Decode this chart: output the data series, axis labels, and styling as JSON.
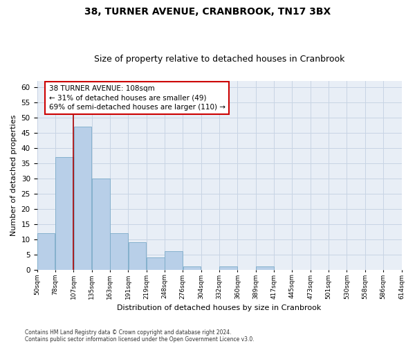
{
  "title": "38, TURNER AVENUE, CRANBROOK, TN17 3BX",
  "subtitle": "Size of property relative to detached houses in Cranbrook",
  "xlabel": "Distribution of detached houses by size in Cranbrook",
  "ylabel": "Number of detached properties",
  "bar_values": [
    12,
    37,
    47,
    30,
    12,
    9,
    4,
    6,
    1,
    0,
    1,
    0,
    1,
    0,
    0,
    0,
    0,
    0,
    0,
    0
  ],
  "x_labels": [
    "50sqm",
    "78sqm",
    "107sqm",
    "135sqm",
    "163sqm",
    "191sqm",
    "219sqm",
    "248sqm",
    "276sqm",
    "304sqm",
    "332sqm",
    "360sqm",
    "389sqm",
    "417sqm",
    "445sqm",
    "473sqm",
    "501sqm",
    "530sqm",
    "558sqm",
    "586sqm",
    "614sqm"
  ],
  "bar_color": "#b8cfe8",
  "bar_edge_color": "#7aaac8",
  "grid_color": "#c8d4e4",
  "bg_color": "#e8eef6",
  "vline_color": "#aa0000",
  "annotation_text": "38 TURNER AVENUE: 108sqm\n← 31% of detached houses are smaller (49)\n69% of semi-detached houses are larger (110) →",
  "annotation_box_color": "#ffffff",
  "annotation_box_edge": "#cc0000",
  "ylim": [
    0,
    62
  ],
  "yticks": [
    0,
    5,
    10,
    15,
    20,
    25,
    30,
    35,
    40,
    45,
    50,
    55,
    60
  ],
  "footer": "Contains HM Land Registry data © Crown copyright and database right 2024.\nContains public sector information licensed under the Open Government Licence v3.0.",
  "title_fontsize": 10,
  "subtitle_fontsize": 9,
  "ylabel_fontsize": 8,
  "xlabel_fontsize": 8,
  "annotation_fontsize": 7.5,
  "ytick_fontsize": 7.5,
  "xtick_fontsize": 6.5
}
